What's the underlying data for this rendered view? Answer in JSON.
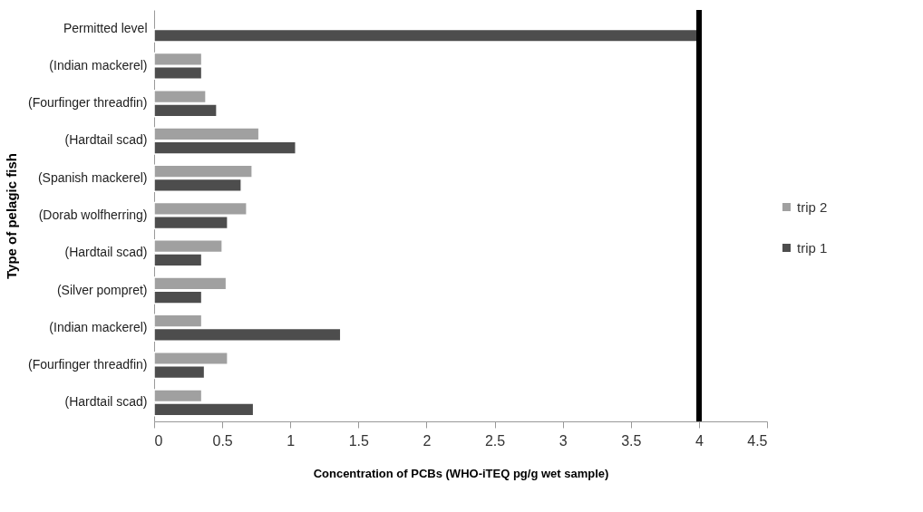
{
  "chart_data": {
    "type": "bar",
    "orientation": "horizontal",
    "xlabel": "Concentration of PCBs (WHO-iTEQ pg/g wet sample)",
    "ylabel": "Type of pelagic fish",
    "categories": [
      "Permitted level",
      "(Indian mackerel)",
      "(Fourfinger threadfin)",
      "(Hardtail scad)",
      "(Spanish mackerel)",
      "(Dorab wolfherring)",
      "(Hardtail scad)",
      "(Silver pompret)",
      "(Indian mackerel)",
      "(Fourfinger threadfin)",
      "(Hardtail scad)"
    ],
    "series": [
      {
        "name": "trip 2",
        "color": "#a0a0a0",
        "values": [
          null,
          0.35,
          0.38,
          0.77,
          0.72,
          0.68,
          0.5,
          0.53,
          0.35,
          0.54,
          0.35
        ]
      },
      {
        "name": "trip 1",
        "color": "#4d4d4d",
        "values": [
          4,
          0.35,
          0.46,
          1.04,
          0.64,
          0.54,
          0.35,
          0.35,
          1.37,
          0.37,
          0.73
        ]
      }
    ],
    "xlim": [
      0,
      4.5
    ],
    "xticks": [
      0,
      0.5,
      1,
      1.5,
      2,
      2.5,
      3,
      3.5,
      4,
      4.5
    ],
    "ref_lines": [
      {
        "axis": "x",
        "value": 4,
        "color": "#000000"
      }
    ],
    "grid": false,
    "legend": "right"
  }
}
